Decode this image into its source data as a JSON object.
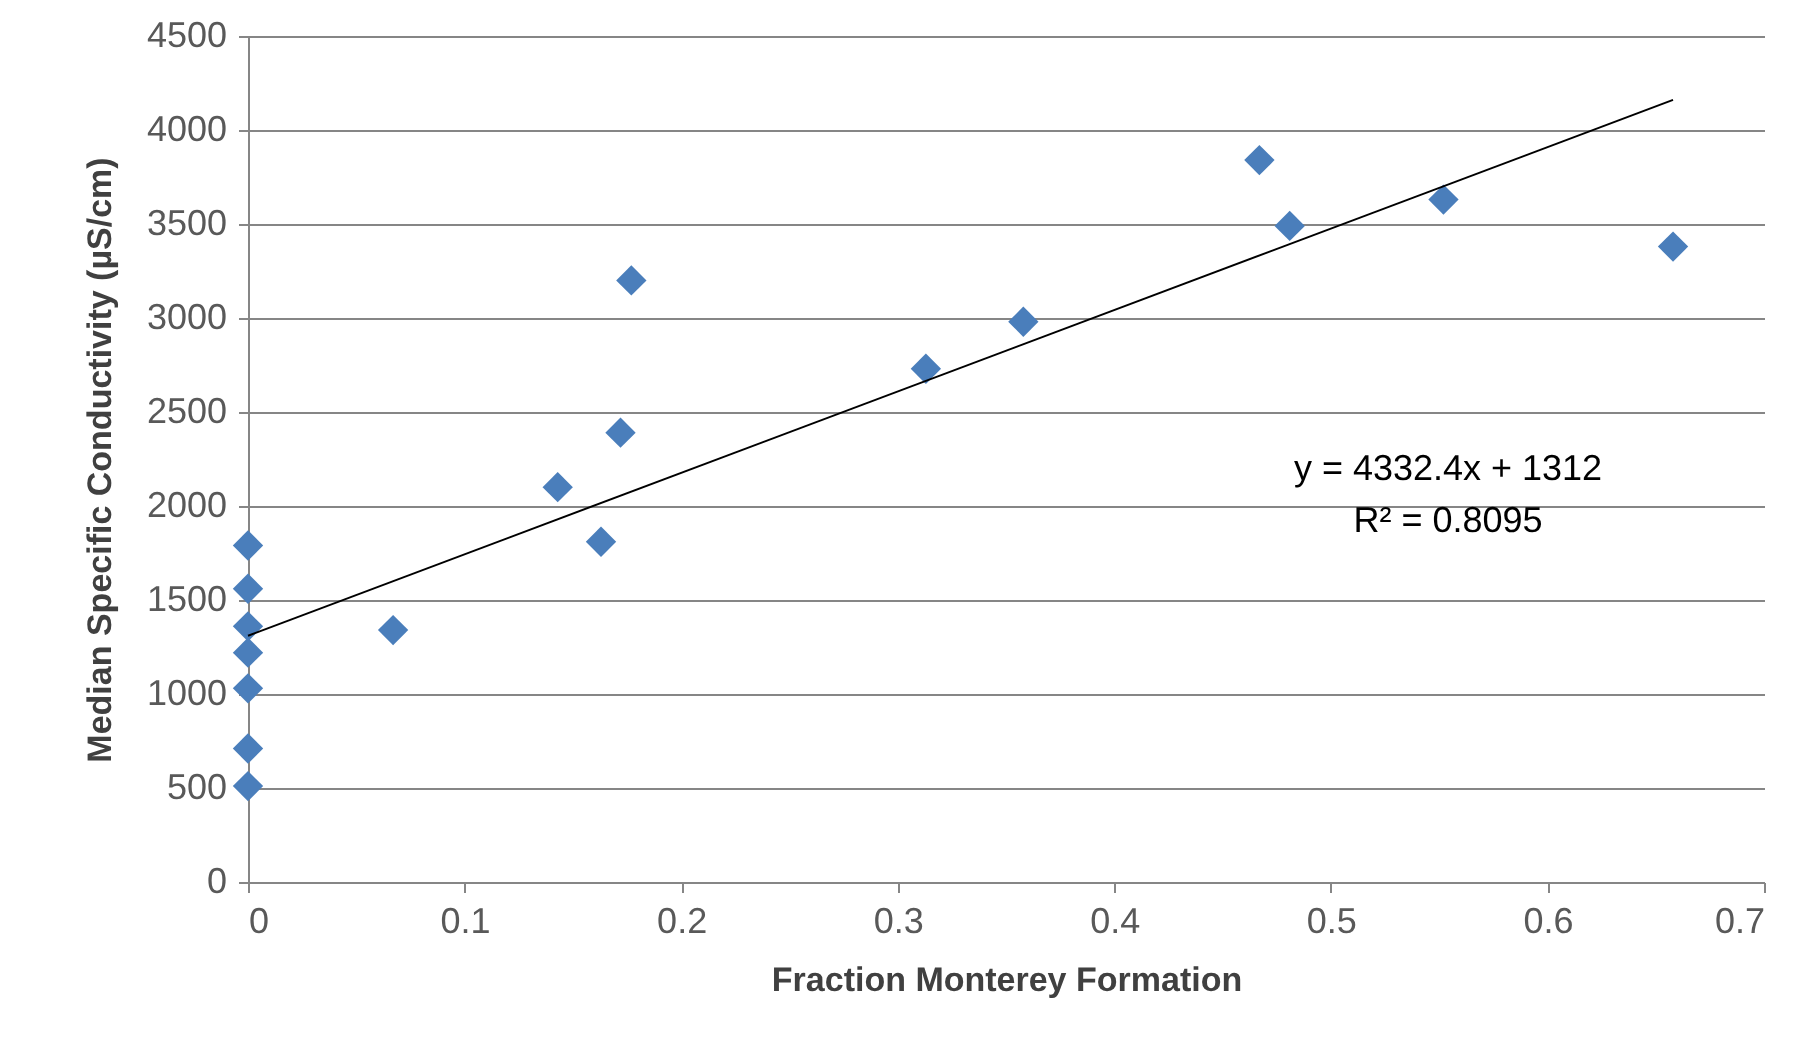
{
  "chart_data": {
    "type": "scatter",
    "xlabel": "Fraction Monterey Formation",
    "ylabel": "Median Specific Conductivity (µS/cm)",
    "xlim": [
      0,
      0.7
    ],
    "xticks": [
      0,
      0.1,
      0.2,
      0.3,
      0.4,
      0.5,
      0.6,
      0.7
    ],
    "ylim": [
      0,
      4500
    ],
    "yticks": [
      0,
      500,
      1000,
      1500,
      2000,
      2500,
      3000,
      3500,
      4000,
      4500
    ],
    "grid": "y",
    "annotations": [
      "y = 4332.4x + 1312",
      "R² = 0.8095"
    ],
    "series": [
      {
        "marker": "diamond",
        "color": "#4a7ebb",
        "x": [
          0,
          0,
          0,
          0,
          0,
          0,
          0,
          0.067,
          0.143,
          0.163,
          0.172,
          0.177,
          0.313,
          0.358,
          0.467,
          0.481,
          0.552,
          0.658
        ],
        "values": [
          1790,
          1560,
          1360,
          1220,
          1030,
          710,
          510,
          1340,
          2100,
          1810,
          2390,
          3200,
          2730,
          2980,
          3840,
          3490,
          3630,
          3380
        ]
      },
      {
        "type": "line",
        "color": "#000000",
        "x": [
          0,
          0.658
        ],
        "values": [
          1310,
          4160
        ]
      }
    ]
  }
}
